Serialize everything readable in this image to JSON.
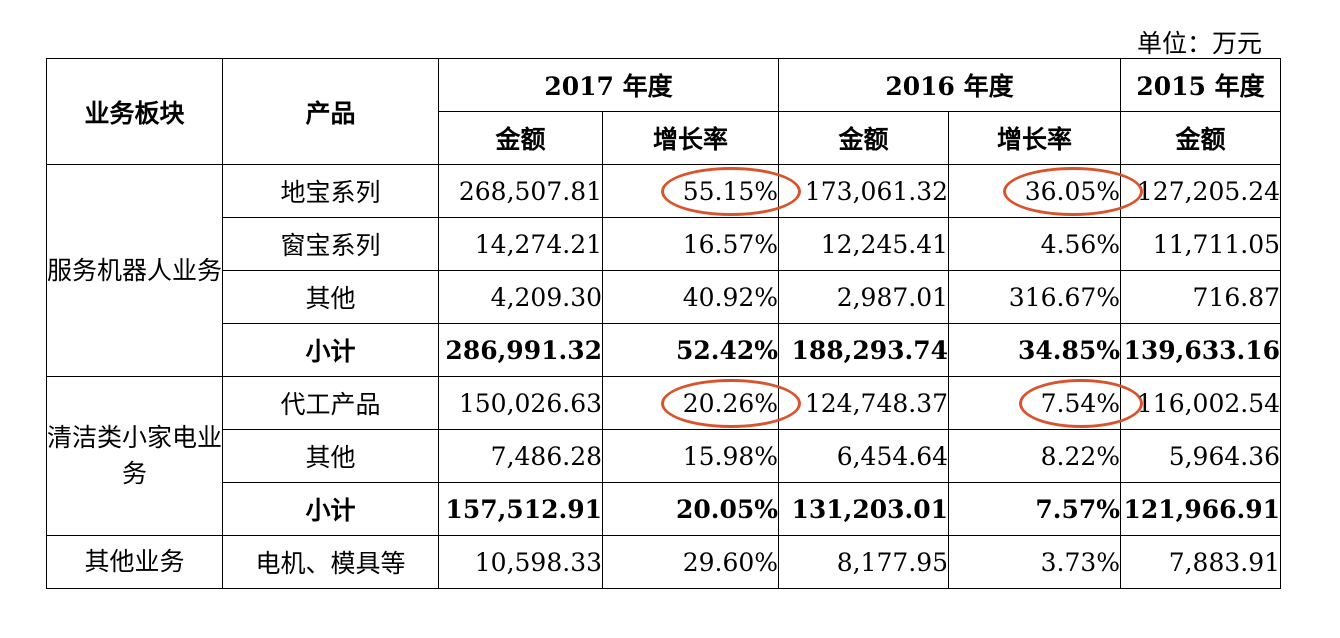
{
  "unit_label": "单位：万元",
  "headers": {
    "segment": "业务板块",
    "product": "产品",
    "y2017": "2017 年度",
    "y2016": "2016 年度",
    "y2015": "2015 年度",
    "amount": "金额",
    "growth": "增长率"
  },
  "groups": [
    {
      "segment": "服务机器人业务",
      "rows": [
        {
          "product": "地宝系列",
          "a2017": "268,507.81",
          "g2017": "55.15%",
          "a2016": "173,061.32",
          "g2016": "36.05%",
          "a2015": "127,205.24",
          "circled": [
            "g2017",
            "g2016"
          ]
        },
        {
          "product": "窗宝系列",
          "a2017": "14,274.21",
          "g2017": "16.57%",
          "a2016": "12,245.41",
          "g2016": "4.56%",
          "a2015": "11,711.05"
        },
        {
          "product": "其他",
          "a2017": "4,209.30",
          "g2017": "40.92%",
          "a2016": "2,987.01",
          "g2016": "316.67%",
          "a2015": "716.87"
        },
        {
          "product": "小计",
          "a2017": "286,991.32",
          "g2017": "52.42%",
          "a2016": "188,293.74",
          "g2016": "34.85%",
          "a2015": "139,633.16",
          "subtotal": true
        }
      ]
    },
    {
      "segment": "清洁类小家电业务",
      "rows": [
        {
          "product": "代工产品",
          "a2017": "150,026.63",
          "g2017": "20.26%",
          "a2016": "124,748.37",
          "g2016": "7.54%",
          "a2015": "116,002.54",
          "circled": [
            "g2017",
            "g2016"
          ]
        },
        {
          "product": "其他",
          "a2017": "7,486.28",
          "g2017": "15.98%",
          "a2016": "6,454.64",
          "g2016": "8.22%",
          "a2015": "5,964.36"
        },
        {
          "product": "小计",
          "a2017": "157,512.91",
          "g2017": "20.05%",
          "a2016": "131,203.01",
          "g2016": "7.57%",
          "a2015": "121,966.91",
          "subtotal": true
        }
      ]
    },
    {
      "segment": "其他业务",
      "rows": [
        {
          "product": "电机、模具等",
          "a2017": "10,598.33",
          "g2017": "29.60%",
          "a2016": "8,177.95",
          "g2016": "3.73%",
          "a2015": "7,883.91"
        }
      ]
    }
  ],
  "highlight_color": "#d9532b"
}
